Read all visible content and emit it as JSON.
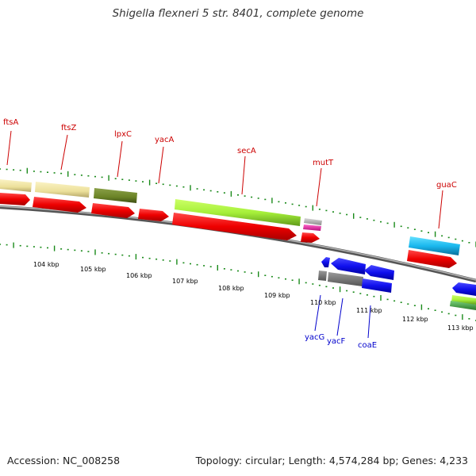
{
  "title": "Shigella flexneri 5 str. 8401, complete genome",
  "footer": {
    "accession": "Accession: NC_008258",
    "topology": "Topology: circular; Length: 4,574,284 bp; Genes: 4,233"
  },
  "colors": {
    "forward_label": "#cc0000",
    "reverse_label": "#0000cc",
    "backbone": "#888888",
    "tick_marks": "#1a8a1a"
  },
  "scale_labels": [
    "104 kbp",
    "105 kbp",
    "106 kbp",
    "107 kbp",
    "108 kbp",
    "109 kbp",
    "110 kbp",
    "111 kbp",
    "112 kbp",
    "113 kbp"
  ],
  "gene_labels_forward": [
    "ftsA",
    "ftsZ",
    "lpxC",
    "yacA",
    "secA",
    "mutT",
    "guaC"
  ],
  "gene_labels_reverse": [
    "yacG",
    "yacF",
    "coaE"
  ]
}
